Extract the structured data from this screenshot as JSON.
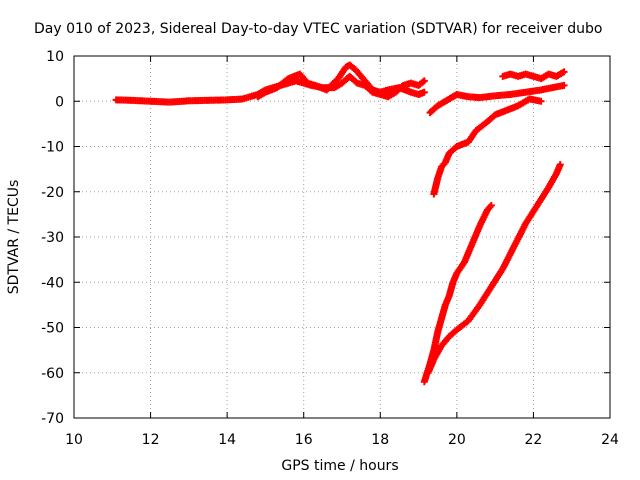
{
  "chart_data": {
    "type": "scatter",
    "title": "Day 010 of 2023, Sidereal Day-to-day VTEC variation (SDTVAR) for receiver dubo",
    "xlabel": "GPS time / hours",
    "ylabel": "SDTVAR / TECUs",
    "xlim": [
      10,
      24
    ],
    "ylim": [
      -70,
      10
    ],
    "x_ticks": [
      "10",
      "12",
      "14",
      "16",
      "18",
      "20",
      "22",
      "24"
    ],
    "y_ticks": [
      "10",
      "0",
      "-10",
      "-20",
      "-30",
      "-40",
      "-50",
      "-60",
      "-70"
    ],
    "grid": true,
    "marker": "+",
    "color": "#ff0000",
    "series": [
      {
        "x": [
          11.1,
          11.5,
          12.0,
          12.5,
          13.0,
          13.5,
          14.0,
          14.4,
          14.6,
          14.8,
          15.0,
          15.2,
          15.4,
          15.6,
          15.8,
          16.0,
          16.2,
          16.5,
          16.8,
          17.0,
          17.2,
          17.4,
          17.6,
          17.8,
          18.0,
          18.2,
          18.4,
          18.6,
          18.8,
          19.0,
          19.15
        ],
        "y": [
          0.3,
          0.2,
          0.0,
          -0.2,
          0.1,
          0.2,
          0.3,
          0.5,
          1.0,
          1.5,
          2.5,
          3.0,
          3.5,
          4.0,
          4.5,
          4.0,
          3.5,
          3.0,
          3.0,
          4.0,
          5.5,
          4.0,
          3.5,
          2.0,
          1.5,
          1.0,
          2.0,
          3.5,
          4.0,
          3.5,
          4.5
        ]
      },
      {
        "x": [
          14.8,
          15.0,
          15.3,
          15.6,
          15.9,
          16.0,
          16.1,
          16.3,
          16.6,
          16.9,
          17.1,
          17.2,
          17.35,
          17.6,
          17.8,
          18.0,
          18.2,
          18.5,
          18.8,
          19.0,
          19.15
        ],
        "y": [
          1.0,
          2.0,
          3.0,
          5.0,
          6.0,
          5.0,
          4.0,
          3.5,
          2.5,
          5.0,
          7.5,
          8.0,
          7.0,
          4.5,
          2.5,
          2.0,
          2.5,
          3.0,
          2.0,
          1.5,
          2.0
        ]
      },
      {
        "x": [
          19.3,
          19.5,
          19.7,
          19.9,
          20.0,
          20.3,
          20.6,
          21.0,
          21.4,
          21.8,
          22.2,
          22.5,
          22.8
        ],
        "y": [
          -2.5,
          -1.0,
          0.0,
          1.0,
          1.5,
          1.0,
          0.8,
          1.2,
          1.5,
          2.0,
          2.5,
          3.0,
          3.5
        ]
      },
      {
        "x": [
          21.2,
          21.4,
          21.6,
          21.8,
          22.0,
          22.2,
          22.4,
          22.6,
          22.8
        ],
        "y": [
          5.5,
          6.0,
          5.5,
          6.0,
          5.5,
          5.0,
          6.0,
          5.5,
          6.5
        ]
      },
      {
        "x": [
          19.4,
          19.5,
          19.6,
          19.7,
          19.8,
          20.0,
          20.3,
          20.5,
          20.8,
          21.0,
          21.3,
          21.6,
          21.9,
          22.2
        ],
        "y": [
          -20.5,
          -17.0,
          -14.5,
          -13.5,
          -11.5,
          -10.0,
          -9.0,
          -6.5,
          -4.5,
          -3.0,
          -2.0,
          -1.0,
          0.5,
          0.0
        ]
      },
      {
        "x": [
          19.15,
          19.3,
          19.4,
          19.5,
          19.6,
          19.7,
          19.8,
          19.9,
          20.0,
          20.2,
          20.4,
          20.6,
          20.8,
          20.9
        ],
        "y": [
          -62.0,
          -58.0,
          -55.0,
          -51.0,
          -48.0,
          -45.0,
          -43.0,
          -40.0,
          -38.0,
          -35.5,
          -31.5,
          -27.5,
          -24.0,
          -23.0
        ]
      },
      {
        "x": [
          19.25,
          19.4,
          19.6,
          19.8,
          20.0,
          20.3,
          20.6,
          20.9,
          21.2,
          21.5,
          21.8,
          22.1,
          22.4,
          22.6,
          22.7
        ],
        "y": [
          -60.0,
          -57.0,
          -54.0,
          -52.0,
          -50.5,
          -48.5,
          -45.0,
          -41.0,
          -37.0,
          -32.0,
          -27.0,
          -23.0,
          -19.0,
          -16.0,
          -14.0
        ]
      }
    ]
  }
}
